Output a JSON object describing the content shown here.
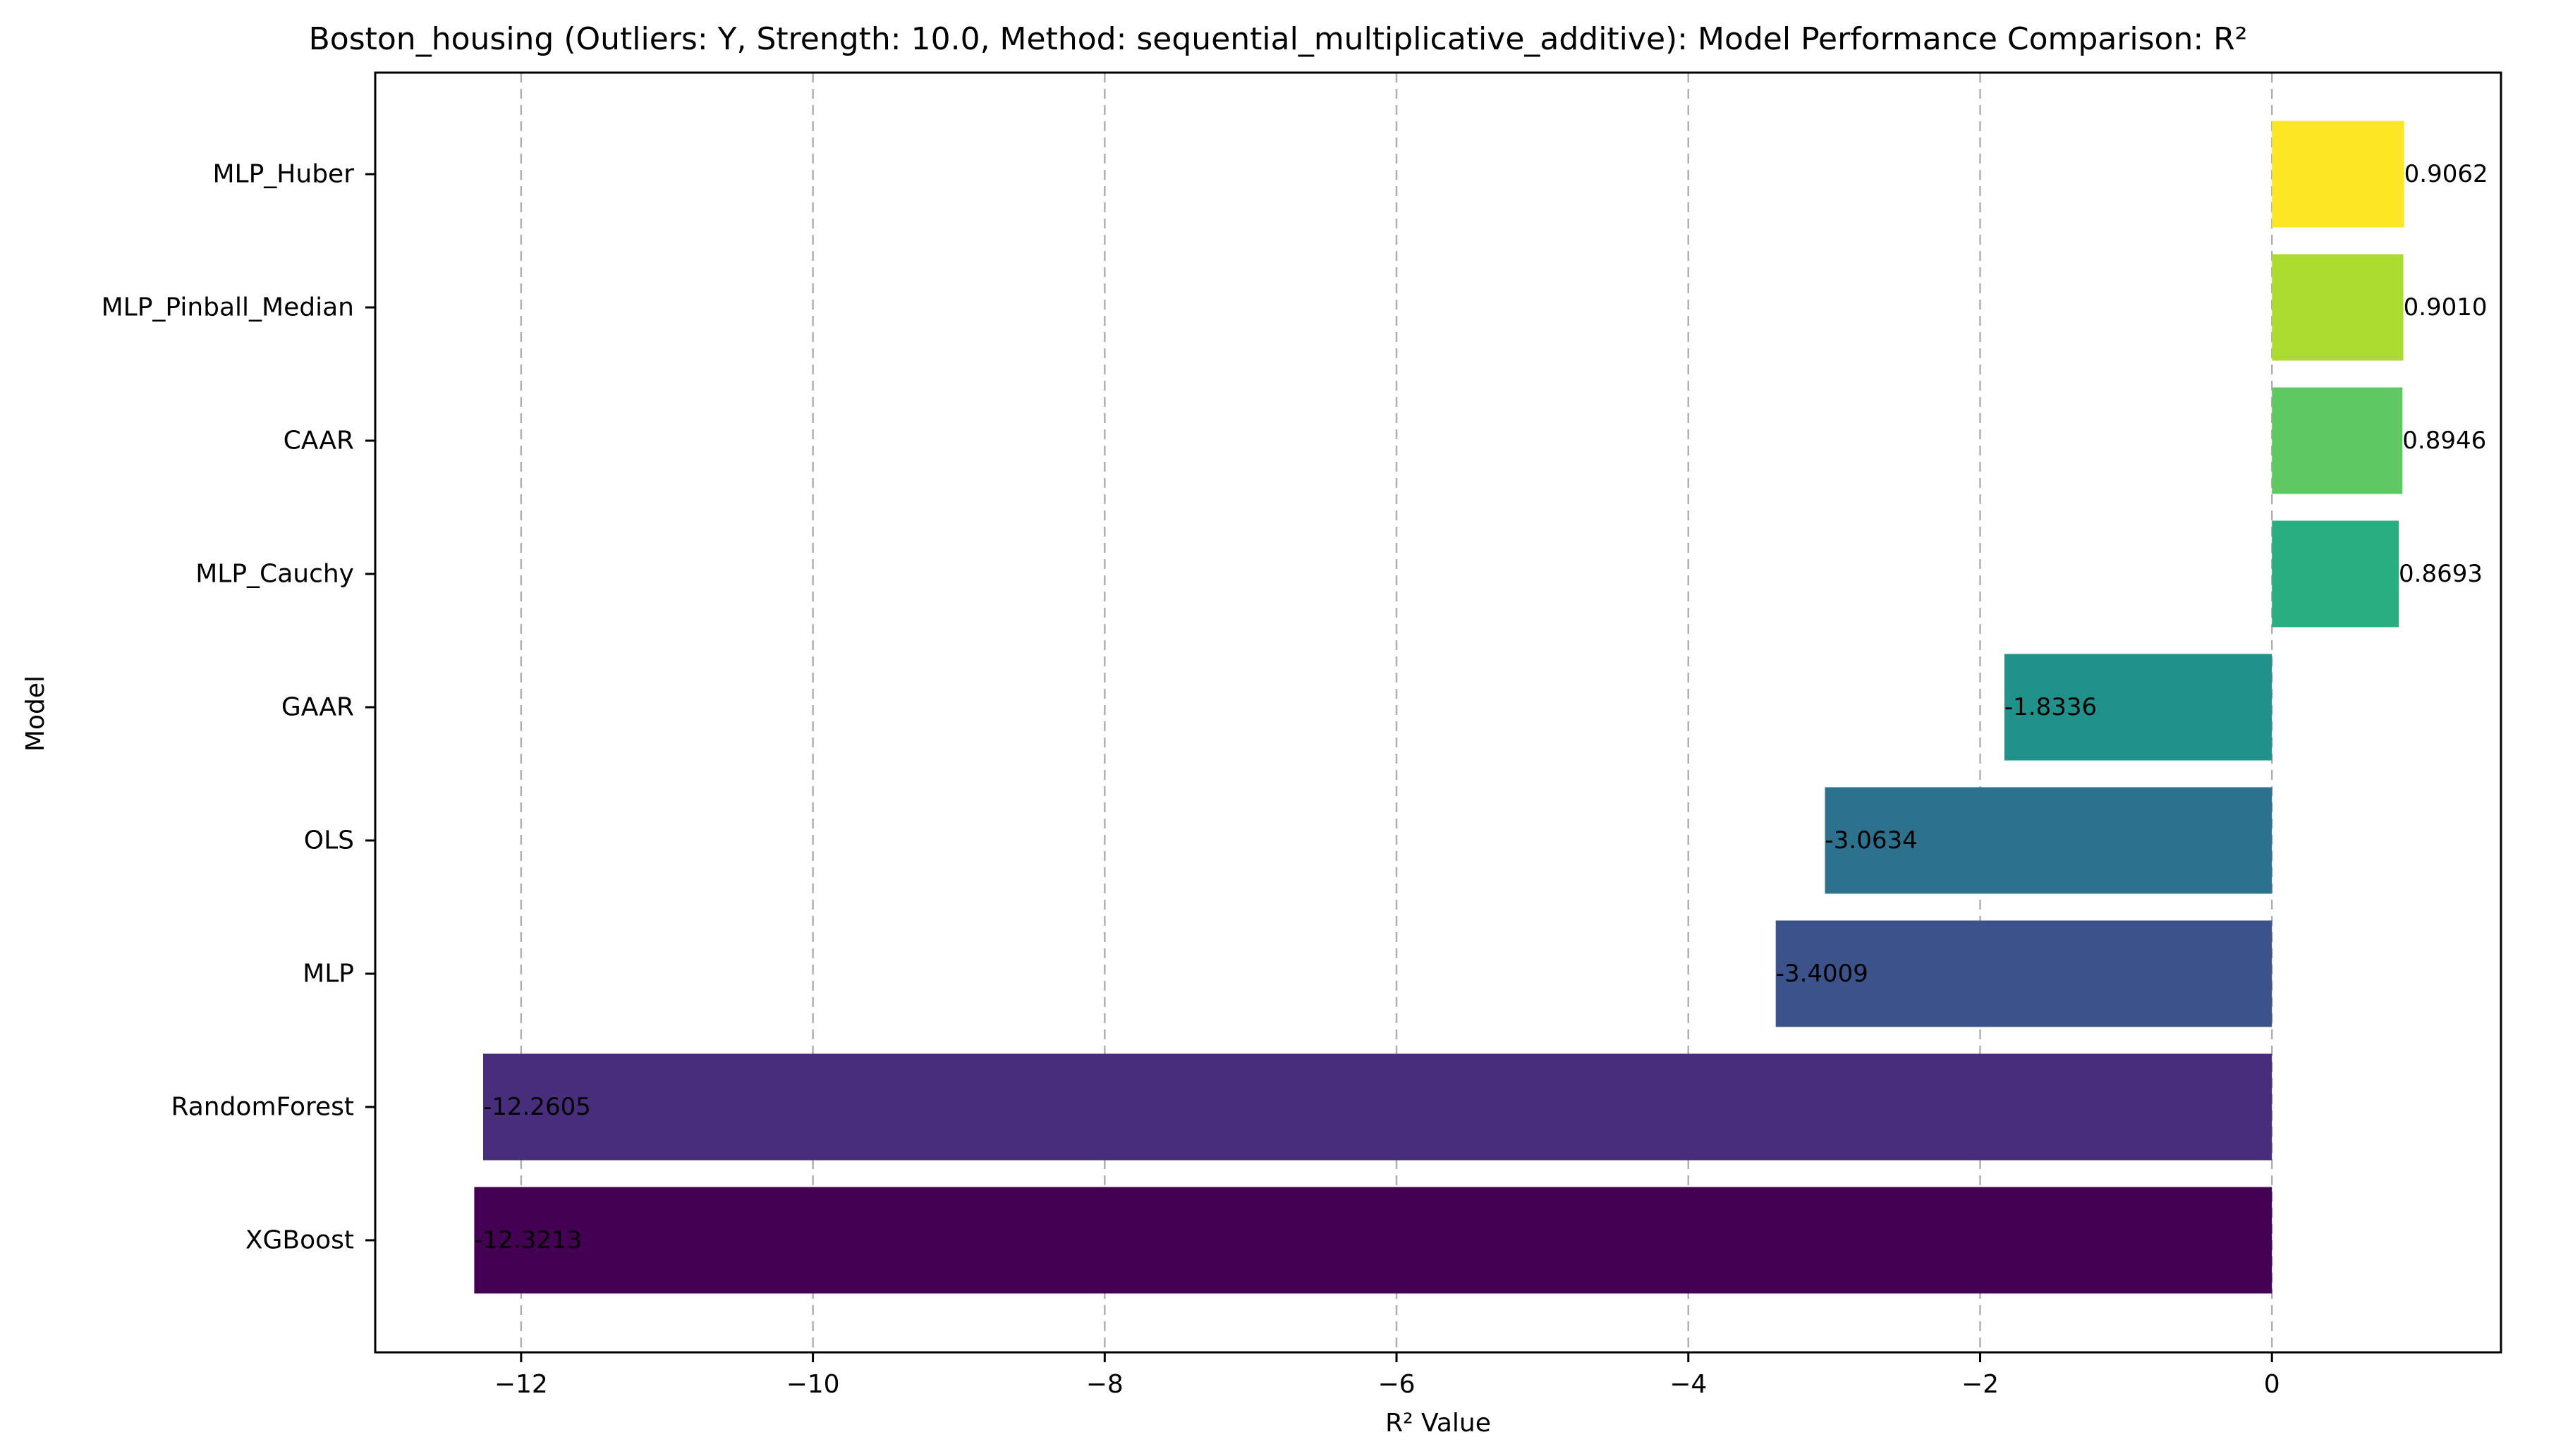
{
  "chart_data": {
    "type": "bar",
    "orientation": "horizontal",
    "title": "Boston_housing (Outliers: Y, Strength: 10.0, Method: sequential_multiplicative_additive): Model Performance Comparison: R²",
    "xlabel": "R² Value",
    "ylabel": "Model",
    "xlim": [
      -13.0,
      1.57
    ],
    "xticks": [
      -12,
      -10,
      -8,
      -6,
      -4,
      -2,
      0
    ],
    "xtick_labels": [
      "−12",
      "−10",
      "−8",
      "−6",
      "−4",
      "−2",
      "0"
    ],
    "grid": "vertical dashed",
    "categories": [
      "XGBoost",
      "RandomForest",
      "MLP",
      "OLS",
      "GAAR",
      "MLP_Cauchy",
      "CAAR",
      "MLP_Pinball_Median",
      "MLP_Huber"
    ],
    "values": [
      -12.3213,
      -12.2605,
      -3.4009,
      -3.0634,
      -1.8336,
      0.8693,
      0.8946,
      0.901,
      0.9062
    ],
    "value_labels": [
      "-12.3213",
      "-12.2605",
      "-3.4009",
      "-3.0634",
      "-1.8336",
      "0.8693",
      "0.8946",
      "0.9010",
      "0.9062"
    ],
    "colors": [
      "#440154",
      "#472d7b",
      "#3b528b",
      "#2c728e",
      "#21918c",
      "#28ae80",
      "#5ec962",
      "#addc30",
      "#fde725"
    ]
  }
}
